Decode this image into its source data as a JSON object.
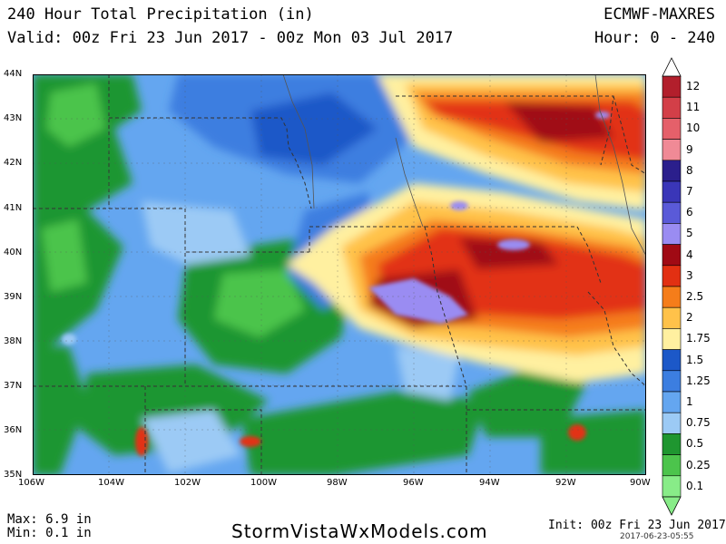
{
  "header": {
    "title": "240 Hour Total Precipitation (in)",
    "valid": "Valid: 00z Fri 23 Jun 2017 - 00z Mon 03 Jul 2017",
    "model": "ECMWF-MAXRES",
    "hour": "Hour: 0 - 240"
  },
  "axes": {
    "lat_labels": [
      "44N",
      "43N",
      "42N",
      "41N",
      "40N",
      "39N",
      "38N",
      "37N",
      "36N",
      "35N"
    ],
    "lon_labels": [
      "106W",
      "104W",
      "102W",
      "100W",
      "98W",
      "96W",
      "94W",
      "92W",
      "90W"
    ]
  },
  "legend": {
    "levels": [
      "12",
      "11",
      "10",
      "9",
      "8",
      "7",
      "6",
      "5",
      "4",
      "3",
      "2.5",
      "2",
      "1.75",
      "1.5",
      "1.25",
      "1",
      "0.75",
      "0.5",
      "0.25",
      "0.1"
    ],
    "colors": [
      "#b21f2c",
      "#d33f48",
      "#e5606a",
      "#f08a96",
      "#2b1f8c",
      "#3a36b8",
      "#5a5ad8",
      "#9a8cf2",
      "#a00a14",
      "#e23012",
      "#f57d1a",
      "#ffc24a",
      "#fff0a0",
      "#1c58c8",
      "#3c7ee0",
      "#64a6f0",
      "#9ccaf5",
      "#1f9630",
      "#4cc44c",
      "#88ec88"
    ]
  },
  "footer": {
    "max": "Max: 6.9 in",
    "min": "Min: 0.1 in",
    "brand": "StormVistaWxModels.com",
    "init": "Init: 00z Fri 23 Jun 2017",
    "stamp": "2017-06-23-05:55"
  }
}
